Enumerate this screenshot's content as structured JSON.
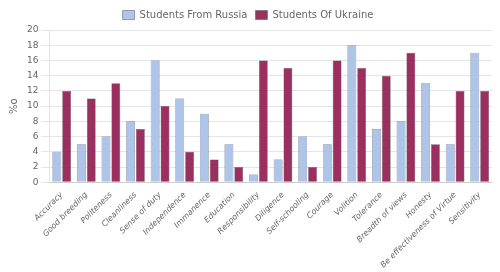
{
  "chart_data": {
    "type": "bar",
    "categories": [
      "Accuracy",
      "Good breeding",
      "Politeness",
      "Cleanliness",
      "Sense of duty",
      "Independence",
      "Immanence",
      "Education",
      "Responsibility",
      "Diligence",
      "Self-schooling",
      "Courage",
      "Volition",
      "Tolerance",
      "Breadth of views",
      "Honesty",
      "Be effectiveness of Virtue",
      "Sensitivity"
    ],
    "series": [
      {
        "name": "Students From Russia",
        "color": "#aec4e8",
        "values": [
          4,
          5,
          6,
          8,
          16,
          11,
          9,
          5,
          1,
          3,
          6,
          5,
          18,
          7,
          8,
          13,
          5,
          17
        ]
      },
      {
        "name": "Students Of Ukraine",
        "color": "#9b3060",
        "values": [
          12,
          11,
          13,
          7,
          10,
          4,
          3,
          2,
          16,
          15,
          2,
          16,
          15,
          14,
          17,
          5,
          12,
          12
        ]
      }
    ],
    "ylabel": "%o",
    "ylim": [
      0,
      20
    ],
    "yticks": [
      0,
      2,
      4,
      6,
      8,
      10,
      12,
      14,
      16,
      18,
      20
    ],
    "grid": true,
    "legend": "top"
  }
}
